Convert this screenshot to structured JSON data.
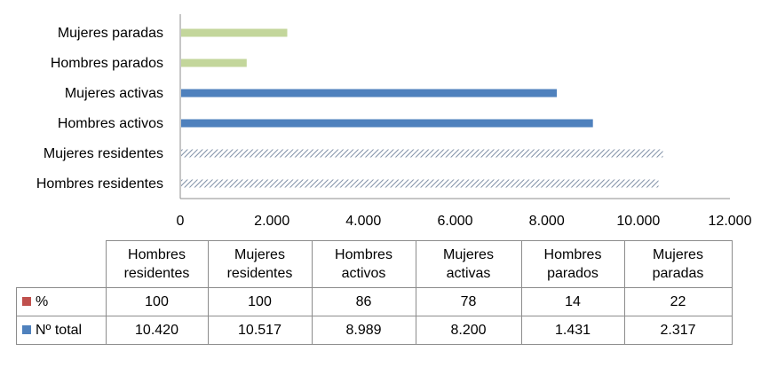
{
  "chart_data": {
    "type": "bar",
    "orientation": "horizontal",
    "categories": [
      "Hombres residentes",
      "Mujeres residentes",
      "Hombres activos",
      "Mujeres activas",
      "Hombres parados",
      "Mujeres paradas"
    ],
    "series": [
      {
        "name": "%",
        "values": [
          100,
          100,
          86,
          78,
          14,
          22
        ],
        "color": "#c0504d"
      },
      {
        "name": "Nº total",
        "values": [
          10420,
          10517,
          8989,
          8200,
          1431,
          2317
        ],
        "color": "#4f81bd"
      }
    ],
    "bar_styles": [
      "hatched-gray",
      "hatched-gray",
      "solid-blue",
      "solid-blue",
      "solid-green",
      "solid-green"
    ],
    "colors": {
      "blue": "#4f81bd",
      "green": "#c3d69b",
      "hatch": "#7f8fa6",
      "red": "#c0504d"
    },
    "xlim": [
      0,
      12000
    ],
    "xticks": [
      "0",
      "2.000",
      "4.000",
      "6.000",
      "8.000",
      "10.000",
      "12.000"
    ],
    "legend_placement": "data-table",
    "grid": false
  },
  "table": {
    "headers": [
      [
        "Hombres",
        "residentes"
      ],
      [
        "Mujeres",
        "residentes"
      ],
      [
        "Hombres",
        "activos"
      ],
      [
        "Mujeres",
        "activas"
      ],
      [
        "Hombres",
        "parados"
      ],
      [
        "Mujeres",
        "paradas"
      ]
    ],
    "rows": [
      {
        "label": "%",
        "values": [
          "100",
          "100",
          "86",
          "78",
          "14",
          "22"
        ]
      },
      {
        "label": "Nº total",
        "values": [
          "10.420",
          "10.517",
          "8.989",
          "8.200",
          "1.431",
          "2.317"
        ]
      }
    ]
  }
}
